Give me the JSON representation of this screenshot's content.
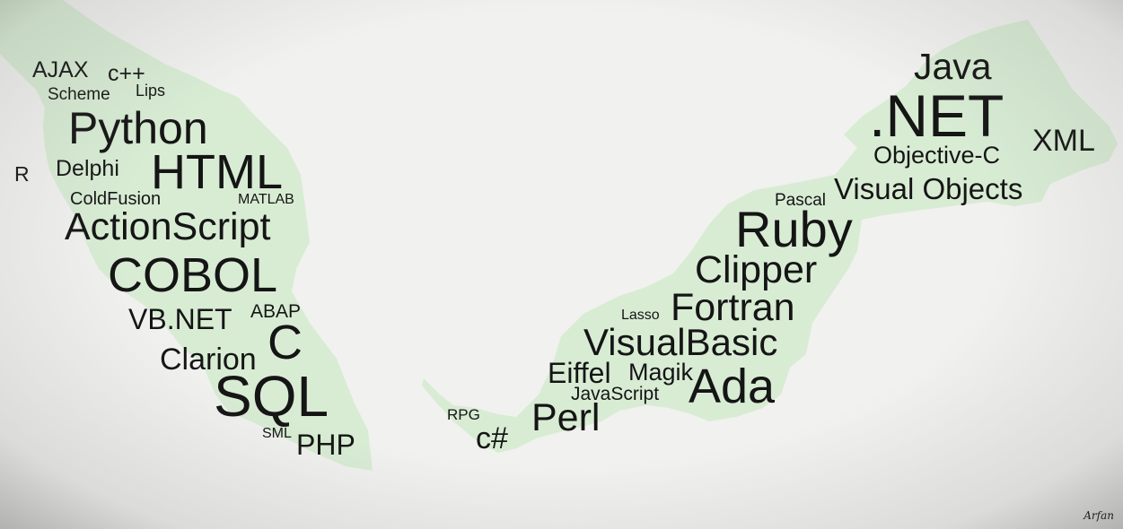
{
  "colors": {
    "land": "#d8ecd4",
    "background": "#f1f1ef",
    "text": "#151515"
  },
  "west_words": [
    "AJAX",
    "c++",
    "Scheme",
    "Lips",
    "Python",
    "R",
    "Delphi",
    "HTML",
    "ColdFusion",
    "MATLAB",
    "ActionScript",
    "COBOL",
    "VB.NET",
    "ABAP",
    "C",
    "Clarion",
    "SQL",
    "SML",
    "PHP"
  ],
  "east_words": [
    "Java",
    ".NET",
    "XML",
    "Objective-C",
    "Pascal",
    "Visual Objects",
    "Ruby",
    "Clipper",
    "Lasso",
    "Fortran",
    "VisualBasic",
    "Eiffel",
    "Magik",
    "JavaScript",
    "Ada",
    "RPG",
    "Perl",
    "c#"
  ],
  "signature": "Arfan"
}
